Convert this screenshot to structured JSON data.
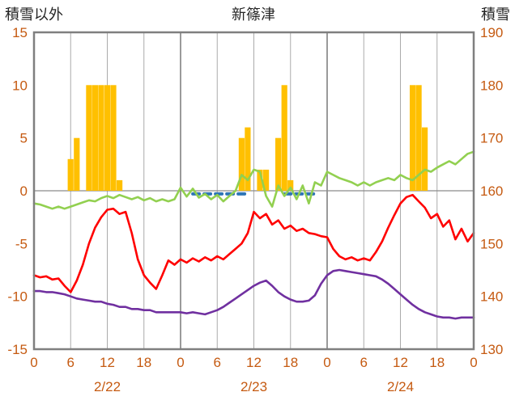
{
  "chart_data": {
    "type": "line",
    "title": "新篠津",
    "left_axis_title": "積雪以外",
    "right_axis_title": "積雪",
    "left_axis": {
      "min": -15,
      "max": 15,
      "ticks": [
        15,
        10,
        5,
        0,
        -5,
        -10,
        -15
      ]
    },
    "right_axis": {
      "min": 130,
      "max": 190,
      "ticks": [
        190,
        180,
        170,
        160,
        150,
        140,
        130
      ]
    },
    "x_hours_total": 72,
    "x_ticks": [
      {
        "hour": 0,
        "label": "0"
      },
      {
        "hour": 6,
        "label": "6"
      },
      {
        "hour": 12,
        "label": "12"
      },
      {
        "hour": 18,
        "label": "18"
      },
      {
        "hour": 24,
        "label": "0"
      },
      {
        "hour": 30,
        "label": "6"
      },
      {
        "hour": 36,
        "label": "12"
      },
      {
        "hour": 42,
        "label": "18"
      },
      {
        "hour": 48,
        "label": "0"
      },
      {
        "hour": 54,
        "label": "6"
      },
      {
        "hour": 60,
        "label": "12"
      },
      {
        "hour": 66,
        "label": "18"
      },
      {
        "hour": 72,
        "label": "0"
      }
    ],
    "date_labels": [
      {
        "hour": 12,
        "label": "2/22"
      },
      {
        "hour": 36,
        "label": "2/23"
      },
      {
        "hour": 60,
        "label": "2/24"
      }
    ],
    "colors": {
      "bars": "#FFC000",
      "snow_depth_line": "#92D050",
      "red_line": "#FF0000",
      "purple_line": "#7030A0",
      "blue_dashed": "#2E75B6",
      "tick_text": "#C55A11",
      "grid": "#ABABAB",
      "border": "#7F7F7F"
    },
    "series": [
      {
        "name": "snowfall-bars",
        "type": "bar",
        "axis": "left",
        "color": "#FFC000",
        "values": [
          0,
          0,
          0,
          0,
          0,
          0,
          3,
          5,
          0,
          10,
          10,
          10,
          10,
          10,
          1,
          0,
          0,
          0,
          0,
          0,
          0,
          0,
          0,
          0,
          0,
          0,
          0,
          0,
          0,
          0,
          0,
          0,
          0,
          0,
          5,
          6,
          0,
          2,
          2,
          0,
          5,
          10,
          1,
          0,
          0,
          0,
          0,
          0,
          0,
          0,
          0,
          0,
          0,
          0,
          0,
          0,
          0,
          0,
          0,
          0,
          0,
          0,
          10,
          10,
          6,
          0,
          0,
          0,
          0,
          0,
          0,
          0,
          0
        ]
      },
      {
        "name": "blue-dashed-line",
        "type": "line",
        "axis": "left",
        "color": "#2E75B6",
        "dashed": true,
        "values": [
          null,
          null,
          null,
          null,
          null,
          null,
          null,
          null,
          null,
          null,
          null,
          null,
          null,
          null,
          null,
          null,
          null,
          null,
          null,
          null,
          null,
          null,
          null,
          null,
          null,
          null,
          -0.3,
          -0.3,
          -0.3,
          -0.3,
          -0.3,
          -0.3,
          -0.3,
          -0.3,
          -0.3,
          -0.3,
          null,
          null,
          null,
          null,
          null,
          -0.3,
          -0.3,
          -0.3,
          -0.3,
          -0.3,
          -0.3,
          null,
          null,
          null,
          null,
          null,
          null,
          null,
          null,
          null,
          null,
          null,
          null,
          null,
          null,
          null,
          null,
          null,
          null,
          null,
          null,
          null,
          null,
          null,
          null,
          null,
          null
        ]
      },
      {
        "name": "snow-depth-line",
        "type": "line",
        "axis": "right",
        "color": "#92D050",
        "values": [
          157.6,
          157.4,
          157.0,
          156.6,
          157.0,
          156.6,
          157.0,
          157.4,
          157.8,
          158.2,
          158.0,
          158.6,
          159.0,
          158.6,
          159.2,
          158.8,
          158.4,
          158.8,
          158.2,
          158.6,
          158.0,
          158.4,
          158.0,
          158.4,
          160.6,
          158.9,
          160.4,
          158.7,
          159.4,
          158.4,
          159.2,
          158.0,
          159.0,
          160.0,
          163.0,
          162.0,
          164.0,
          163.6,
          159.0,
          157.0,
          161.0,
          159.0,
          160.6,
          158.4,
          161.0,
          157.6,
          161.6,
          161.0,
          163.6,
          163.0,
          162.4,
          162.0,
          161.6,
          161.0,
          161.6,
          161.0,
          161.6,
          162.0,
          162.4,
          162.0,
          163.0,
          162.4,
          162.0,
          163.0,
          164.0,
          163.6,
          164.4,
          165.0,
          165.6,
          165.0,
          166.0,
          167.0,
          167.4
        ]
      },
      {
        "name": "red-temperature-line",
        "type": "line",
        "axis": "left",
        "color": "#FF0000",
        "values": [
          -8.0,
          -8.2,
          -8.1,
          -8.4,
          -8.3,
          -9.0,
          -9.6,
          -8.5,
          -7.0,
          -5.0,
          -3.5,
          -2.5,
          -1.8,
          -1.7,
          -2.2,
          -2.0,
          -4.0,
          -6.5,
          -8.0,
          -8.7,
          -9.3,
          -8.0,
          -6.6,
          -7.0,
          -6.5,
          -6.8,
          -6.4,
          -6.7,
          -6.3,
          -6.6,
          -6.2,
          -6.5,
          -6.0,
          -5.5,
          -5.0,
          -4.0,
          -2.0,
          -2.6,
          -2.2,
          -3.2,
          -2.8,
          -3.6,
          -3.3,
          -3.8,
          -3.6,
          -4.0,
          -4.1,
          -4.3,
          -4.4,
          -5.5,
          -6.2,
          -6.5,
          -6.3,
          -6.6,
          -6.4,
          -6.6,
          -5.8,
          -4.8,
          -3.5,
          -2.3,
          -1.2,
          -0.6,
          -0.4,
          -1.0,
          -1.6,
          -2.6,
          -2.2,
          -3.4,
          -2.8,
          -4.6,
          -3.6,
          -4.8,
          -4.0
        ]
      },
      {
        "name": "purple-temperature-line",
        "type": "line",
        "axis": "left",
        "color": "#7030A0",
        "values": [
          -9.5,
          -9.5,
          -9.6,
          -9.6,
          -9.7,
          -9.8,
          -10.0,
          -10.2,
          -10.3,
          -10.4,
          -10.5,
          -10.5,
          -10.7,
          -10.8,
          -11.0,
          -11.0,
          -11.2,
          -11.2,
          -11.3,
          -11.3,
          -11.5,
          -11.5,
          -11.5,
          -11.5,
          -11.5,
          -11.6,
          -11.5,
          -11.6,
          -11.7,
          -11.5,
          -11.3,
          -11.0,
          -10.6,
          -10.2,
          -9.8,
          -9.4,
          -9.0,
          -8.7,
          -8.5,
          -9.0,
          -9.6,
          -10.0,
          -10.3,
          -10.5,
          -10.5,
          -10.4,
          -9.9,
          -8.8,
          -8.0,
          -7.6,
          -7.5,
          -7.6,
          -7.7,
          -7.8,
          -7.9,
          -8.0,
          -8.1,
          -8.4,
          -8.8,
          -9.3,
          -9.8,
          -10.3,
          -10.8,
          -11.2,
          -11.5,
          -11.7,
          -11.9,
          -12.0,
          -12.0,
          -12.1,
          -12.0,
          -12.0,
          -12.0
        ]
      }
    ]
  }
}
